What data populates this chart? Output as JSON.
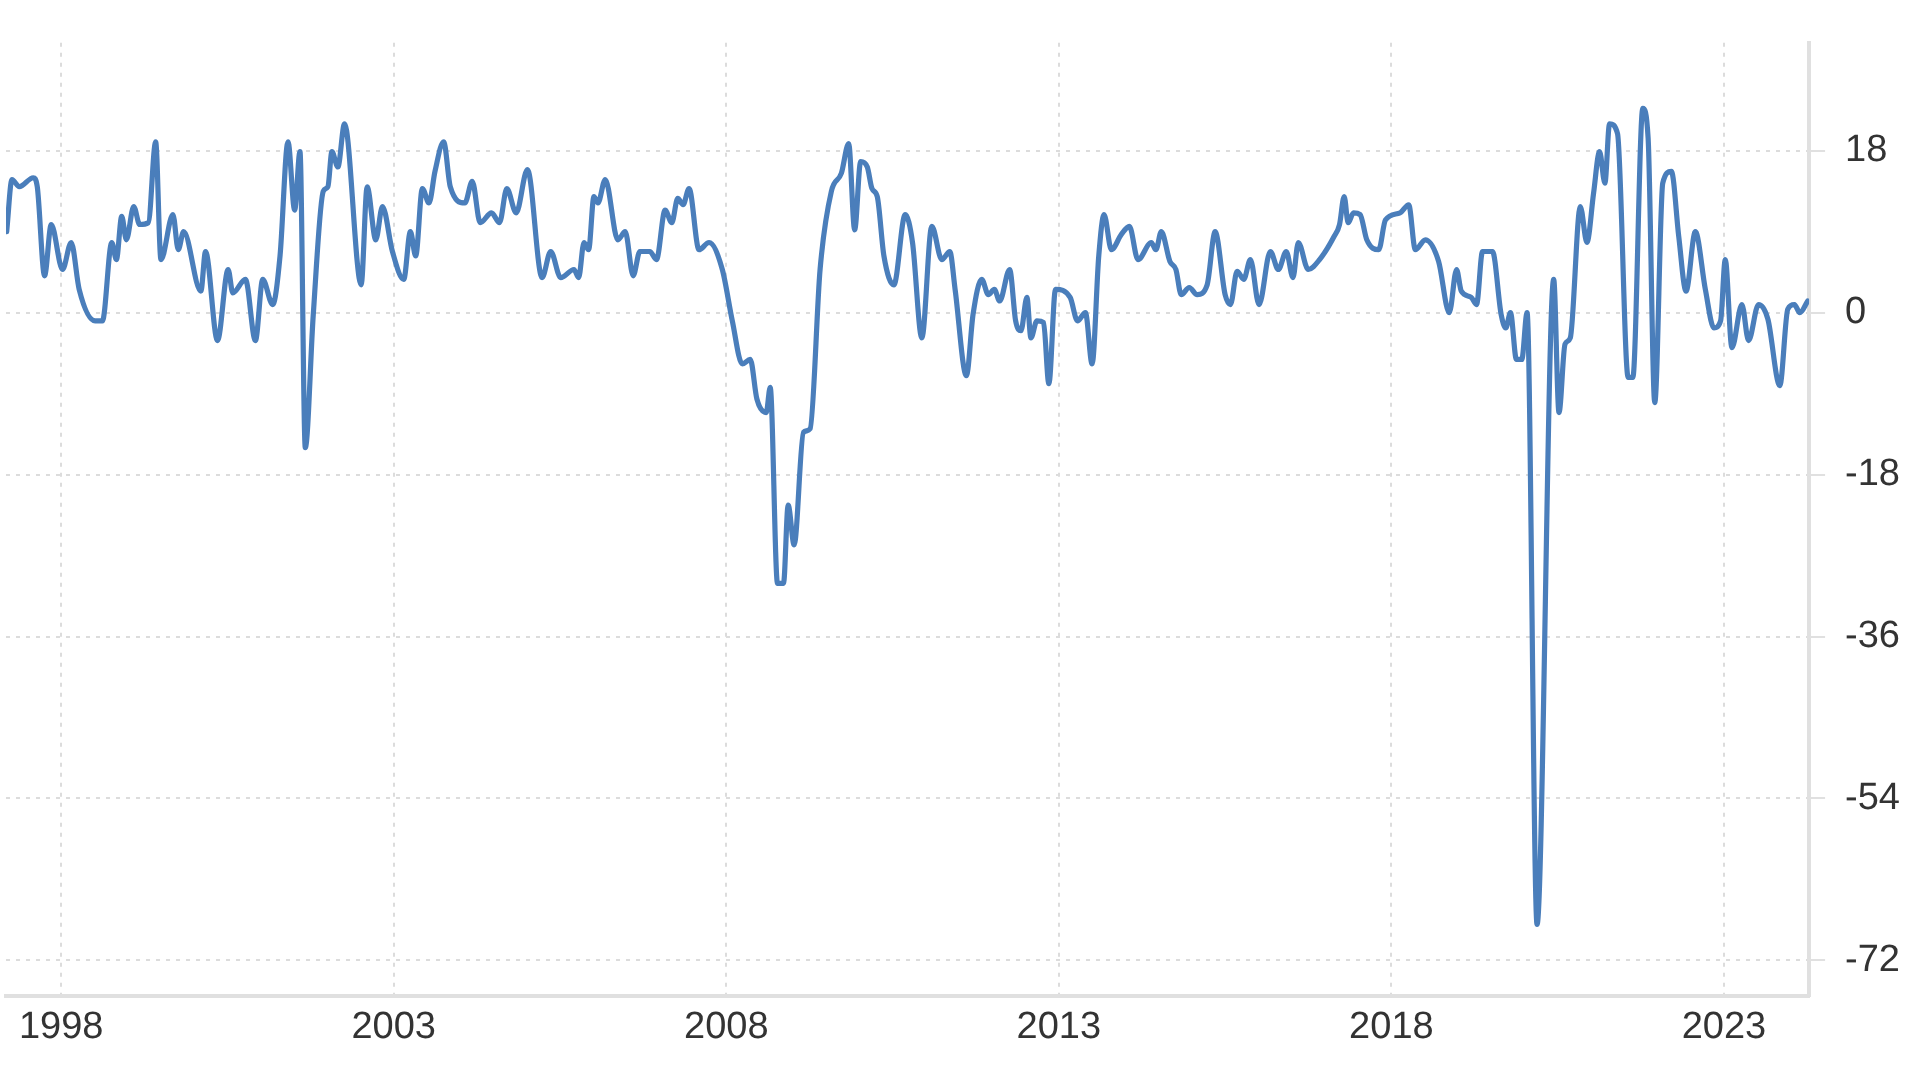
{
  "chart_data": {
    "type": "line",
    "xlim": [
      1997.17,
      2024.28
    ],
    "xticks": [
      1998,
      2003,
      2008,
      2013,
      2018,
      2023
    ],
    "ylim": [
      -76,
      30
    ],
    "yticks": [
      -72,
      -54,
      -36,
      -18,
      0,
      18
    ],
    "grid": true,
    "marker": "none",
    "x": [
      1997.18,
      1997.26,
      1997.37,
      1997.58,
      1997.64,
      1997.75,
      1997.85,
      1998.02,
      1998.15,
      1998.27,
      1998.51,
      1998.62,
      1998.76,
      1998.83,
      1998.91,
      1998.98,
      1999.09,
      1999.18,
      1999.31,
      1999.42,
      1999.5,
      1999.68,
      1999.76,
      1999.84,
      2000.1,
      2000.17,
      2000.35,
      2000.51,
      2000.58,
      2000.77,
      2000.92,
      2001.03,
      2001.18,
      2001.29,
      2001.41,
      2001.51,
      2001.59,
      2001.67,
      2001.79,
      2001.94,
      2002.01,
      2002.07,
      2002.16,
      2002.26,
      2002.51,
      2002.6,
      2002.73,
      2002.83,
      2002.98,
      2003.15,
      2003.25,
      2003.33,
      2003.43,
      2003.53,
      2003.62,
      2003.75,
      2003.85,
      2004.07,
      2004.18,
      2004.3,
      2004.47,
      2004.59,
      2004.7,
      2004.84,
      2005.01,
      2005.23,
      2005.36,
      2005.51,
      2005.71,
      2005.78,
      2005.86,
      2005.93,
      2006.01,
      2006.07,
      2006.18,
      2006.37,
      2006.48,
      2006.6,
      2006.7,
      2006.85,
      2006.95,
      2007.08,
      2007.18,
      2007.27,
      2007.35,
      2007.44,
      2007.59,
      2007.74,
      2007.94,
      2008.09,
      2008.24,
      2008.36,
      2008.46,
      2008.6,
      2008.66,
      2008.77,
      2008.86,
      2008.93,
      2009.02,
      2009.16,
      2009.26,
      2009.41,
      2009.58,
      2009.73,
      2009.84,
      2009.93,
      2010.02,
      2010.12,
      2010.19,
      2010.27,
      2010.37,
      2010.52,
      2010.69,
      2010.8,
      2010.94,
      2011.09,
      2011.24,
      2011.36,
      2011.44,
      2011.61,
      2011.71,
      2011.84,
      2011.94,
      2012.03,
      2012.11,
      2012.26,
      2012.35,
      2012.43,
      2012.52,
      2012.58,
      2012.67,
      2012.77,
      2012.85,
      2012.95,
      2013.17,
      2013.28,
      2013.4,
      2013.5,
      2013.6,
      2013.68,
      2013.79,
      2013.94,
      2014.06,
      2014.19,
      2014.39,
      2014.46,
      2014.54,
      2014.67,
      2014.76,
      2014.84,
      2014.96,
      2015.08,
      2015.23,
      2015.35,
      2015.5,
      2015.58,
      2015.68,
      2015.78,
      2015.88,
      2016.01,
      2016.18,
      2016.3,
      2016.42,
      2016.52,
      2016.6,
      2016.75,
      2016.92,
      2017.14,
      2017.22,
      2017.29,
      2017.35,
      2017.43,
      2017.53,
      2017.63,
      2017.81,
      2017.91,
      2018.13,
      2018.26,
      2018.36,
      2018.51,
      2018.71,
      2018.87,
      2018.98,
      2019.05,
      2019.2,
      2019.28,
      2019.37,
      2019.52,
      2019.65,
      2019.72,
      2019.79,
      2019.88,
      2019.96,
      2020.04,
      2020.19,
      2020.44,
      2020.52,
      2020.61,
      2020.69,
      2020.84,
      2020.94,
      2021.04,
      2021.13,
      2021.21,
      2021.28,
      2021.4,
      2021.56,
      2021.63,
      2021.78,
      2021.86,
      2021.96,
      2022.08,
      2022.21,
      2022.32,
      2022.43,
      2022.57,
      2022.72,
      2022.85,
      2022.95,
      2023.02,
      2023.12,
      2023.27,
      2023.37,
      2023.52,
      2023.66,
      2023.84,
      2023.96,
      2024.06,
      2024.14,
      2024.26
    ],
    "series": [
      {
        "color": "#4a7ebb",
        "values": [
          9,
          14.8,
          14,
          15,
          14,
          4.1,
          9.8,
          4.8,
          7.8,
          2.6,
          -0.9,
          -0.9,
          7.8,
          5.9,
          10.7,
          8.1,
          11.8,
          9.8,
          10,
          19,
          5.9,
          10.9,
          7,
          9,
          2.4,
          6.8,
          -3.1,
          4.8,
          2.2,
          3.7,
          -3.1,
          3.7,
          0.9,
          6.3,
          19,
          11.4,
          17.9,
          -15,
          -0.2,
          13.5,
          14,
          17.9,
          16.2,
          21,
          3.1,
          14,
          8.1,
          11.8,
          6.8,
          3.7,
          9,
          6.3,
          13.8,
          12.2,
          15.7,
          19,
          14,
          12.2,
          14.6,
          10,
          11.1,
          10,
          13.8,
          11.1,
          15.9,
          3.9,
          6.8,
          3.9,
          4.8,
          3.9,
          7.8,
          7,
          12.9,
          12.2,
          14.8,
          8.1,
          9,
          4.1,
          6.8,
          6.8,
          5.9,
          11.4,
          10,
          12.7,
          12,
          13.8,
          7,
          7.8,
          4.8,
          -0.9,
          -5.7,
          -5.2,
          -9.6,
          -11.1,
          -8.3,
          -30.1,
          -30.1,
          -21.4,
          -25.8,
          -13.3,
          -12.9,
          4.8,
          13.5,
          15.5,
          18.8,
          9.2,
          16.8,
          16.2,
          13.8,
          12.9,
          6.3,
          3.1,
          10.9,
          7.8,
          -2.8,
          9.6,
          5.9,
          6.8,
          2.6,
          -7,
          -0.2,
          3.7,
          2,
          2.6,
          1.3,
          4.8,
          -0.9,
          -2,
          1.7,
          -2.8,
          -0.9,
          -1.1,
          -7.9,
          2.6,
          1.7,
          -0.9,
          0,
          -5.7,
          6.3,
          10.9,
          7,
          8.7,
          9.6,
          5.9,
          7.8,
          7,
          9,
          5.7,
          4.8,
          2,
          2.8,
          2,
          3.1,
          9,
          2,
          0.9,
          4.6,
          3.7,
          5.9,
          0.9,
          6.8,
          4.8,
          6.8,
          3.9,
          7.8,
          4.8,
          5.9,
          8.5,
          9.8,
          12.9,
          10,
          11.1,
          10.9,
          8.1,
          7,
          10.3,
          11.1,
          12,
          7,
          8.1,
          5.7,
          0,
          4.8,
          2.4,
          1.7,
          0.9,
          6.8,
          6.8,
          -0.2,
          -1.7,
          0,
          -5.2,
          -5.2,
          0,
          -68,
          3.7,
          -11.1,
          -3.5,
          -2.8,
          11.8,
          7.8,
          13.3,
          17.9,
          14.4,
          21,
          19.9,
          -7.2,
          -7.2,
          22.7,
          19.4,
          -10,
          14.4,
          15.7,
          8.5,
          2.4,
          9,
          2.6,
          -1.7,
          -0.9,
          5.9,
          -3.9,
          0.9,
          -3.1,
          0.9,
          -0.7,
          -8.1,
          0.4,
          0.9,
          0,
          1.3
        ]
      }
    ]
  }
}
